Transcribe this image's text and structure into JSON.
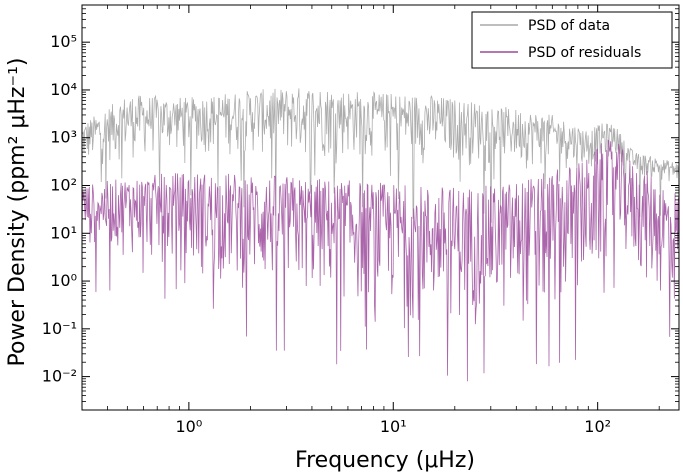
{
  "chart_data": {
    "type": "line",
    "scale": "log-log",
    "xlabel": "Frequency (μHz)",
    "ylabel": "Power Density (ppm² μHz⁻¹)",
    "xlim": [
      0.3,
      250
    ],
    "ylim": [
      0.002,
      600000
    ],
    "x_ticks": [
      {
        "value": 1,
        "label": "10⁰"
      },
      {
        "value": 10,
        "label": "10¹"
      },
      {
        "value": 100,
        "label": "10²"
      }
    ],
    "y_ticks": [
      {
        "value": 0.01,
        "label": "10⁻²"
      },
      {
        "value": 0.1,
        "label": "10⁻¹"
      },
      {
        "value": 1,
        "label": "10⁰"
      },
      {
        "value": 10,
        "label": "10¹"
      },
      {
        "value": 100,
        "label": "10²"
      },
      {
        "value": 1000,
        "label": "10³"
      },
      {
        "value": 10000,
        "label": "10⁴"
      },
      {
        "value": 100000,
        "label": "10⁵"
      }
    ],
    "legend": {
      "position": "top-right"
    },
    "series": [
      {
        "name": "PSD of data",
        "color": "#a9a9a9",
        "envelope_x": [
          0.3,
          0.5,
          1,
          2,
          4,
          8,
          15,
          30,
          60,
          90,
          105,
          120,
          150,
          250
        ],
        "envelope_upper": [
          2000,
          8000,
          7000,
          10000,
          12000,
          9000,
          8000,
          5000,
          3000,
          1500,
          2000,
          2000,
          500,
          300
        ],
        "envelope_lower": [
          200,
          300,
          400,
          350,
          300,
          300,
          250,
          220,
          200,
          200,
          250,
          400,
          150,
          100
        ]
      },
      {
        "name": "PSD of residuals",
        "color": "#9c4a9c",
        "envelope_x": [
          0.3,
          0.5,
          1,
          2,
          4,
          8,
          15,
          30,
          60,
          90,
          105,
          120,
          150,
          250
        ],
        "envelope_upper": [
          100,
          150,
          200,
          180,
          150,
          120,
          100,
          100,
          200,
          400,
          800,
          1000,
          300,
          80
        ],
        "envelope_lower": [
          5,
          3,
          1,
          0.5,
          0.3,
          0.2,
          0.1,
          0.1,
          0.1,
          0.3,
          1,
          3,
          1,
          0.1
        ]
      }
    ]
  }
}
